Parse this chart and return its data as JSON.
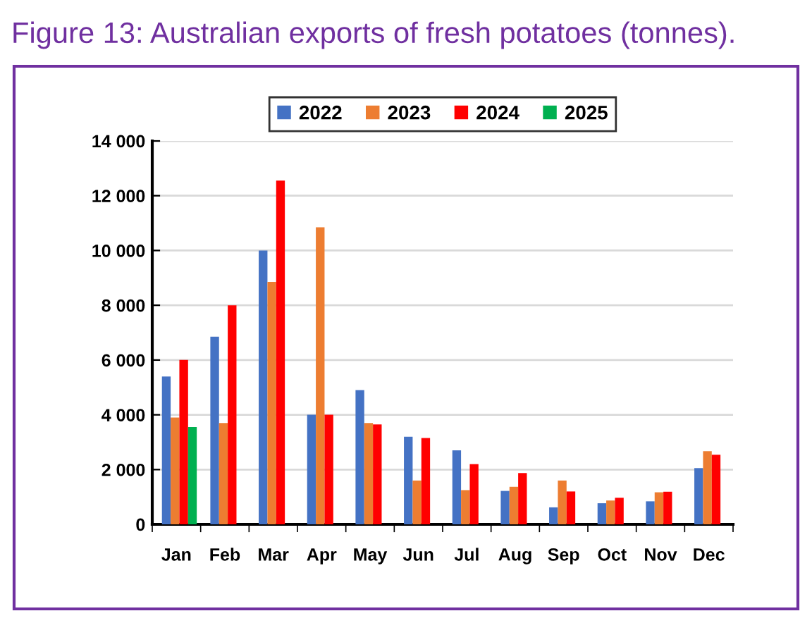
{
  "chart_data": {
    "type": "bar",
    "title": "Figure 13: Australian exports of fresh potatoes (tonnes).",
    "categories": [
      "Jan",
      "Feb",
      "Mar",
      "Apr",
      "May",
      "Jun",
      "Jul",
      "Aug",
      "Sep",
      "Oct",
      "Nov",
      "Dec"
    ],
    "series": [
      {
        "name": "2022",
        "color": "#4472c4",
        "values": [
          5400,
          6850,
          10000,
          4000,
          4900,
          3200,
          2700,
          1220,
          620,
          770,
          840,
          2050
        ]
      },
      {
        "name": "2023",
        "color": "#ed7d31",
        "values": [
          3900,
          3700,
          8850,
          10850,
          3700,
          1600,
          1250,
          1370,
          1600,
          870,
          1170,
          2670
        ]
      },
      {
        "name": "2024",
        "color": "#ff0000",
        "values": [
          6000,
          8000,
          12550,
          4000,
          3650,
          3150,
          2200,
          1870,
          1200,
          970,
          1190,
          2540
        ]
      },
      {
        "name": "2025",
        "color": "#00b050",
        "values": [
          3550,
          null,
          null,
          null,
          null,
          null,
          null,
          null,
          null,
          null,
          null,
          null
        ]
      }
    ],
    "ylim": [
      0,
      14000
    ],
    "yticks": [
      {
        "value": 0,
        "label": "0"
      },
      {
        "value": 2000,
        "label": "2 000"
      },
      {
        "value": 4000,
        "label": "4 000"
      },
      {
        "value": 6000,
        "label": "6 000"
      },
      {
        "value": 8000,
        "label": "8 000"
      },
      {
        "value": 10000,
        "label": "10 000"
      },
      {
        "value": 12000,
        "label": "12 000"
      },
      {
        "value": 14000,
        "label": "14 000"
      }
    ],
    "grid": "y",
    "legend": "top"
  }
}
